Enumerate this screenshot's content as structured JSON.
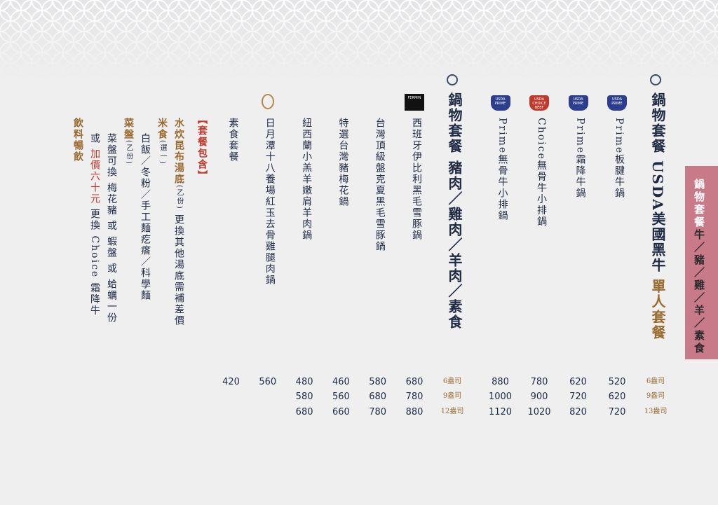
{
  "tab": {
    "title": "鍋物套餐",
    "subtitle": "牛／豬／雞／羊／素食"
  },
  "sections": [
    {
      "title": "鍋物套餐 USDA美國黑牛",
      "tag": "單人套餐",
      "sizes": [
        "6盎司",
        "9盎司",
        "13盎司"
      ],
      "items": [
        {
          "name": "Prime板腱牛鍋",
          "badge": "USDA PRIME",
          "prices": [
            520,
            620,
            720
          ]
        },
        {
          "name": "Prime霜降牛鍋",
          "badge": "USDA PRIME",
          "prices": [
            620,
            720,
            820
          ]
        },
        {
          "name": "Choice無骨牛小排鍋",
          "badge": "USDA CHOICE BEEF",
          "prices": [
            780,
            900,
            1020
          ]
        },
        {
          "name": "Prime無骨牛小排鍋",
          "badge": "USDA PRIME",
          "prices": [
            880,
            1000,
            1120
          ]
        }
      ]
    },
    {
      "title": "鍋物套餐 豬肉／雞肉／羊肉／素食",
      "sizes": [
        "6盎司",
        "9盎司",
        "12盎司"
      ],
      "items": [
        {
          "name": "西班牙伊比利黑毛雪豚鍋",
          "badge": "FERMIN",
          "prices": [
            680,
            780,
            880
          ]
        },
        {
          "name": "台灣頂級盤克夏黑毛雪豚鍋",
          "prices": [
            580,
            680,
            780
          ]
        },
        {
          "name": "特選台灣豬梅花鍋",
          "prices": [
            460,
            560,
            660
          ]
        },
        {
          "name": "紐西蘭小羔羊嫩肩羊肉鍋",
          "prices": [
            480,
            580,
            680
          ]
        },
        {
          "name": "日月潭十八養場紅玉去骨雞腿肉鍋",
          "prices": [
            560
          ]
        },
        {
          "name": "素食套餐",
          "prices": [
            420
          ]
        }
      ]
    }
  ],
  "includes": {
    "title": "【套餐包含】",
    "lines": [
      {
        "label": "水炊昆布湯底",
        "qty": "(乙份)",
        "text": "更換其他湯底需補差價"
      },
      {
        "label": "米食",
        "qty": "(選一)",
        "details": [
          "白飯／冬粉／手工麵疙瘩／科學麵"
        ]
      },
      {
        "label": "菜盤",
        "qty": "(乙份)",
        "details": [
          "菜盤可換 梅花豬 或 蝦盤 或 蛤蠣一份"
        ],
        "addon": {
          "prefix": "或",
          "highlight": "加價六十元",
          "text": "更換 Choice 霜降牛"
        }
      },
      {
        "label": "飲料暢飲"
      }
    ]
  }
}
